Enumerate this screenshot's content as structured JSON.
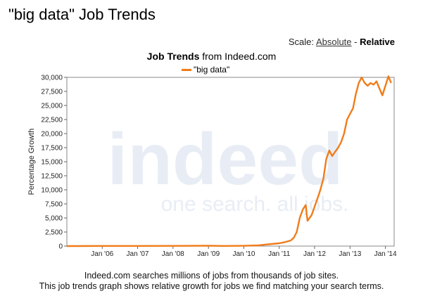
{
  "page": {
    "title": "\"big data\" Job Trends"
  },
  "scale": {
    "label": "Scale:",
    "absolute": "Absolute",
    "separator": "-",
    "relative": "Relative"
  },
  "chart_header": {
    "bold": "Job Trends",
    "rest": "from Indeed.com"
  },
  "watermark": {
    "logo": "indeed",
    "tagline": "one search. all jobs."
  },
  "footer": {
    "line1": "Indeed.com searches millions of jobs from thousands of job sites.",
    "line2": "This job trends graph shows relative growth for jobs we find matching your search terms."
  },
  "colors": {
    "series": "#f07c1a",
    "watermark": "#e8edf5"
  },
  "chart_data": {
    "type": "line",
    "ylabel": "Percentage Growth",
    "xlabel": "",
    "ylim": [
      0,
      30000
    ],
    "yticks": [
      0,
      2500,
      5000,
      7500,
      10000,
      12500,
      15000,
      17500,
      20000,
      22500,
      25000,
      27500,
      30000
    ],
    "ytick_labels": [
      "0",
      "2,500",
      "5,000",
      "7,500",
      "10,000",
      "12,500",
      "15,000",
      "17,500",
      "20,000",
      "22,500",
      "25,000",
      "27,500",
      "30,000"
    ],
    "xlim": [
      "2005-01-01",
      "2014-04-01"
    ],
    "xticks": [
      "2006-01-01",
      "2007-01-01",
      "2008-01-01",
      "2009-01-01",
      "2010-01-01",
      "2011-01-01",
      "2012-01-01",
      "2013-01-01",
      "2014-01-01"
    ],
    "xtick_labels": [
      "Jan '06",
      "Jan '07",
      "Jan '08",
      "Jan '09",
      "Jan '10",
      "Jan '11",
      "Jan '12",
      "Jan '13",
      "Jan '14"
    ],
    "legend": "top-center",
    "grid": false,
    "series": [
      {
        "name": "\"big data\"",
        "points": [
          [
            "2005-01-01",
            0
          ],
          [
            "2006-01-01",
            20
          ],
          [
            "2007-01-01",
            30
          ],
          [
            "2008-01-01",
            40
          ],
          [
            "2009-01-01",
            60
          ],
          [
            "2009-06-01",
            30
          ],
          [
            "2010-01-01",
            50
          ],
          [
            "2010-06-01",
            120
          ],
          [
            "2010-09-01",
            300
          ],
          [
            "2011-01-01",
            500
          ],
          [
            "2011-03-01",
            700
          ],
          [
            "2011-05-01",
            1000
          ],
          [
            "2011-06-01",
            1500
          ],
          [
            "2011-07-01",
            2500
          ],
          [
            "2011-08-01",
            5000
          ],
          [
            "2011-09-01",
            6500
          ],
          [
            "2011-10-01",
            7300
          ],
          [
            "2011-10-20",
            4500
          ],
          [
            "2011-12-01",
            5500
          ],
          [
            "2012-01-01",
            7000
          ],
          [
            "2012-02-01",
            8500
          ],
          [
            "2012-03-01",
            10000
          ],
          [
            "2012-04-01",
            12000
          ],
          [
            "2012-05-01",
            15500
          ],
          [
            "2012-06-01",
            17000
          ],
          [
            "2012-07-01",
            16000
          ],
          [
            "2012-08-01",
            16800
          ],
          [
            "2012-09-01",
            17500
          ],
          [
            "2012-10-01",
            18500
          ],
          [
            "2012-11-01",
            20000
          ],
          [
            "2012-12-01",
            22500
          ],
          [
            "2013-01-01",
            23500
          ],
          [
            "2013-02-01",
            24500
          ],
          [
            "2013-03-01",
            27000
          ],
          [
            "2013-04-01",
            29000
          ],
          [
            "2013-05-01",
            30000
          ],
          [
            "2013-06-01",
            29000
          ],
          [
            "2013-07-01",
            28500
          ],
          [
            "2013-08-01",
            29000
          ],
          [
            "2013-09-01",
            28700
          ],
          [
            "2013-10-01",
            29300
          ],
          [
            "2013-11-01",
            28000
          ],
          [
            "2013-12-01",
            26800
          ],
          [
            "2014-01-01",
            28500
          ],
          [
            "2014-02-01",
            30200
          ],
          [
            "2014-03-01",
            29000
          ]
        ]
      }
    ]
  }
}
